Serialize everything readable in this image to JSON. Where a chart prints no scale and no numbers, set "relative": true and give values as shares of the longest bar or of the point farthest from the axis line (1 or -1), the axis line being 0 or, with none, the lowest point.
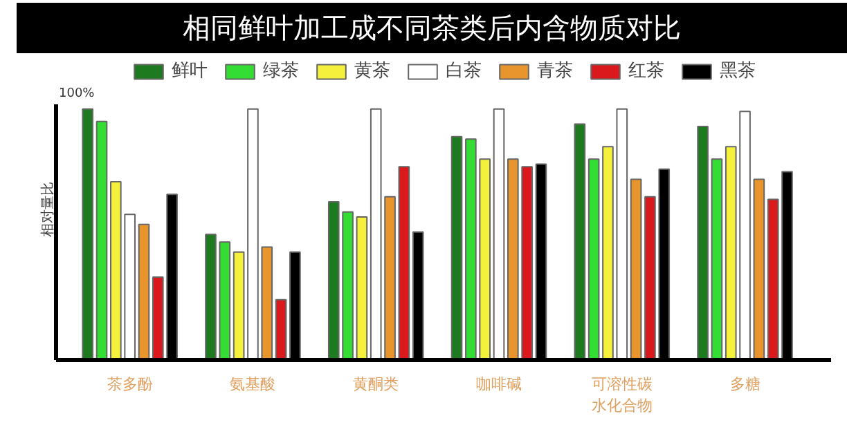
{
  "chart_data": {
    "type": "bar",
    "title": "相同鲜叶加工成不同茶类后内含物质对比",
    "ylabel": "相对量比",
    "annotations": [
      "100%"
    ],
    "relative": true,
    "legend": "top",
    "categories": [
      "茶多酚",
      "氨基酸",
      "黄酮类",
      "咖啡碱",
      "可溶性碳水化合物",
      "多糖"
    ],
    "series": [
      {
        "name": "鲜叶",
        "color": "#1e7a1e",
        "values": [
          1.0,
          0.5,
          0.63,
          0.89,
          0.94,
          0.93
        ]
      },
      {
        "name": "绿茶",
        "color": "#33dd33",
        "values": [
          0.95,
          0.47,
          0.59,
          0.88,
          0.8,
          0.8
        ]
      },
      {
        "name": "黄茶",
        "color": "#f5f03c",
        "values": [
          0.71,
          0.43,
          0.57,
          0.8,
          0.85,
          0.85
        ]
      },
      {
        "name": "白茶",
        "color": "#ffffff",
        "values": [
          0.58,
          1.0,
          1.0,
          1.0,
          1.0,
          0.99
        ]
      },
      {
        "name": "青茶",
        "color": "#e8952e",
        "values": [
          0.54,
          0.45,
          0.65,
          0.8,
          0.72,
          0.72
        ]
      },
      {
        "name": "红茶",
        "color": "#d9191c",
        "values": [
          0.33,
          0.24,
          0.77,
          0.77,
          0.65,
          0.64
        ]
      },
      {
        "name": "黑茶",
        "color": "#000000",
        "values": [
          0.66,
          0.43,
          0.51,
          0.78,
          0.76,
          0.75
        ]
      }
    ]
  }
}
